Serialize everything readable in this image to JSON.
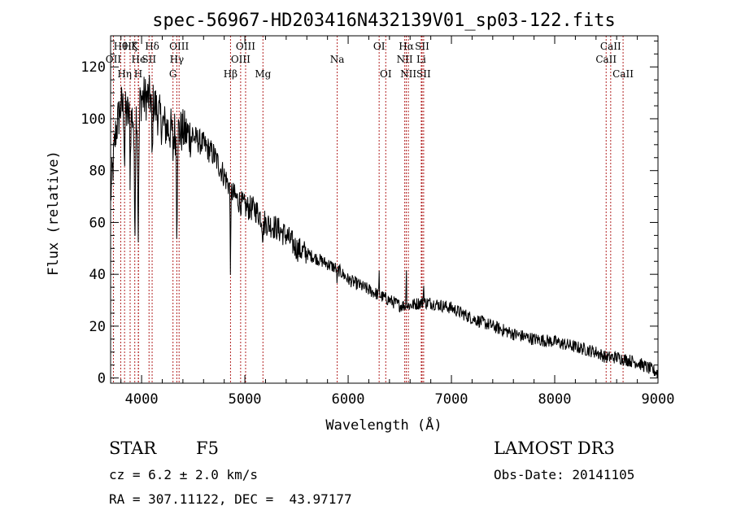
{
  "chart_data": {
    "type": "line",
    "title": "spec-56967-HD203416N432139V01_sp03-122.fits",
    "xlabel": "Wavelength (Å)",
    "ylabel": "Flux (relative)",
    "xlim": [
      3700,
      9000
    ],
    "ylim": [
      -2,
      132
    ],
    "x_ticks": [
      4000,
      5000,
      6000,
      7000,
      8000,
      9000
    ],
    "y_ticks": [
      0,
      20,
      40,
      60,
      80,
      100,
      120
    ],
    "grid": false,
    "spectral_lines": [
      {
        "label": "OII",
        "x": 3727,
        "row": 1
      },
      {
        "label": "Hθ",
        "x": 3798,
        "row": 0
      },
      {
        "label": "Hη",
        "x": 3835,
        "row": 2
      },
      {
        "label": "Hζ",
        "x": 3889,
        "row": 0
      },
      {
        "label": "He",
        "x": 3970,
        "row": 1
      },
      {
        "label": "K",
        "x": 3934,
        "row": 0
      },
      {
        "label": "H",
        "x": 3968,
        "row": 2
      },
      {
        "label": "SII",
        "x": 4072,
        "row": 1
      },
      {
        "label": "Hδ",
        "x": 4102,
        "row": 0
      },
      {
        "label": "G",
        "x": 4304,
        "row": 2
      },
      {
        "label": "Hγ",
        "x": 4341,
        "row": 1
      },
      {
        "label": "OIII",
        "x": 4363,
        "row": 0
      },
      {
        "label": "Hβ",
        "x": 4861,
        "row": 2
      },
      {
        "label": "OIII",
        "x": 4959,
        "row": 1
      },
      {
        "label": "OIII",
        "x": 5007,
        "row": 0
      },
      {
        "label": "Mg",
        "x": 5175,
        "row": 2
      },
      {
        "label": "Na",
        "x": 5894,
        "row": 1
      },
      {
        "label": "OI",
        "x": 6300,
        "row": 0
      },
      {
        "label": "OI",
        "x": 6364,
        "row": 2
      },
      {
        "label": "NII",
        "x": 6548,
        "row": 1
      },
      {
        "label": "Hα",
        "x": 6563,
        "row": 0
      },
      {
        "label": "NII",
        "x": 6583,
        "row": 2
      },
      {
        "label": "Li",
        "x": 6708,
        "row": 1
      },
      {
        "label": "SII",
        "x": 6716,
        "row": 0
      },
      {
        "label": "SII",
        "x": 6731,
        "row": 2
      },
      {
        "label": "CaII",
        "x": 8498,
        "row": 1
      },
      {
        "label": "CaII",
        "x": 8542,
        "row": 0
      },
      {
        "label": "CaII",
        "x": 8662,
        "row": 2
      }
    ],
    "continuum_anchors": {
      "x": [
        3700,
        3750,
        3800,
        3900,
        4000,
        4100,
        4200,
        4300,
        4400,
        4500,
        4600,
        4700,
        4800,
        4900,
        5000,
        5100,
        5200,
        5300,
        5400,
        5500,
        5600,
        5700,
        5800,
        5900,
        6000,
        6100,
        6200,
        6300,
        6400,
        6500,
        6600,
        6700,
        6800,
        6900,
        7000,
        7200,
        7400,
        7600,
        7800,
        8000,
        8200,
        8400,
        8500,
        8600,
        8700,
        8800,
        8900,
        9000
      ],
      "y": [
        70,
        95,
        105,
        100,
        108,
        108,
        98,
        95,
        95,
        93,
        90,
        86,
        78,
        70,
        66,
        65,
        60,
        58,
        55,
        50,
        48,
        46,
        44,
        42,
        38,
        36,
        34,
        32,
        30,
        28,
        28,
        29,
        29,
        28,
        27,
        23,
        20,
        17,
        15,
        14,
        12,
        10,
        8,
        8,
        7,
        6,
        4,
        2
      ]
    },
    "absorption_features": [
      {
        "x": 3934,
        "depth": 42,
        "width": 8
      },
      {
        "x": 3968,
        "depth": 48,
        "width": 8
      },
      {
        "x": 4102,
        "depth": 25,
        "width": 6
      },
      {
        "x": 4341,
        "depth": 35,
        "width": 6
      },
      {
        "x": 4861,
        "depth": 30,
        "width": 5
      },
      {
        "x": 3835,
        "depth": 20,
        "width": 5
      },
      {
        "x": 3889,
        "depth": 22,
        "width": 5
      },
      {
        "x": 4304,
        "depth": 8,
        "width": 6
      },
      {
        "x": 5175,
        "depth": 6,
        "width": 8
      },
      {
        "x": 5894,
        "depth": 5,
        "width": 6
      },
      {
        "x": 6563,
        "depth": 6,
        "width": 4
      }
    ],
    "emission_features": [
      {
        "x": 6563,
        "height": 24,
        "width": 3
      },
      {
        "x": 6300,
        "height": 8,
        "width": 3
      },
      {
        "x": 6731,
        "height": 10,
        "width": 3
      }
    ]
  },
  "info": {
    "object_class": "STAR",
    "subclass": "F5",
    "survey": "LAMOST DR3",
    "redshift": "cz = 6.2 ± 2.0 km/s",
    "obs_date": "Obs-Date: 20141105",
    "coords": "RA = 307.11122, DEC =  43.97177"
  }
}
